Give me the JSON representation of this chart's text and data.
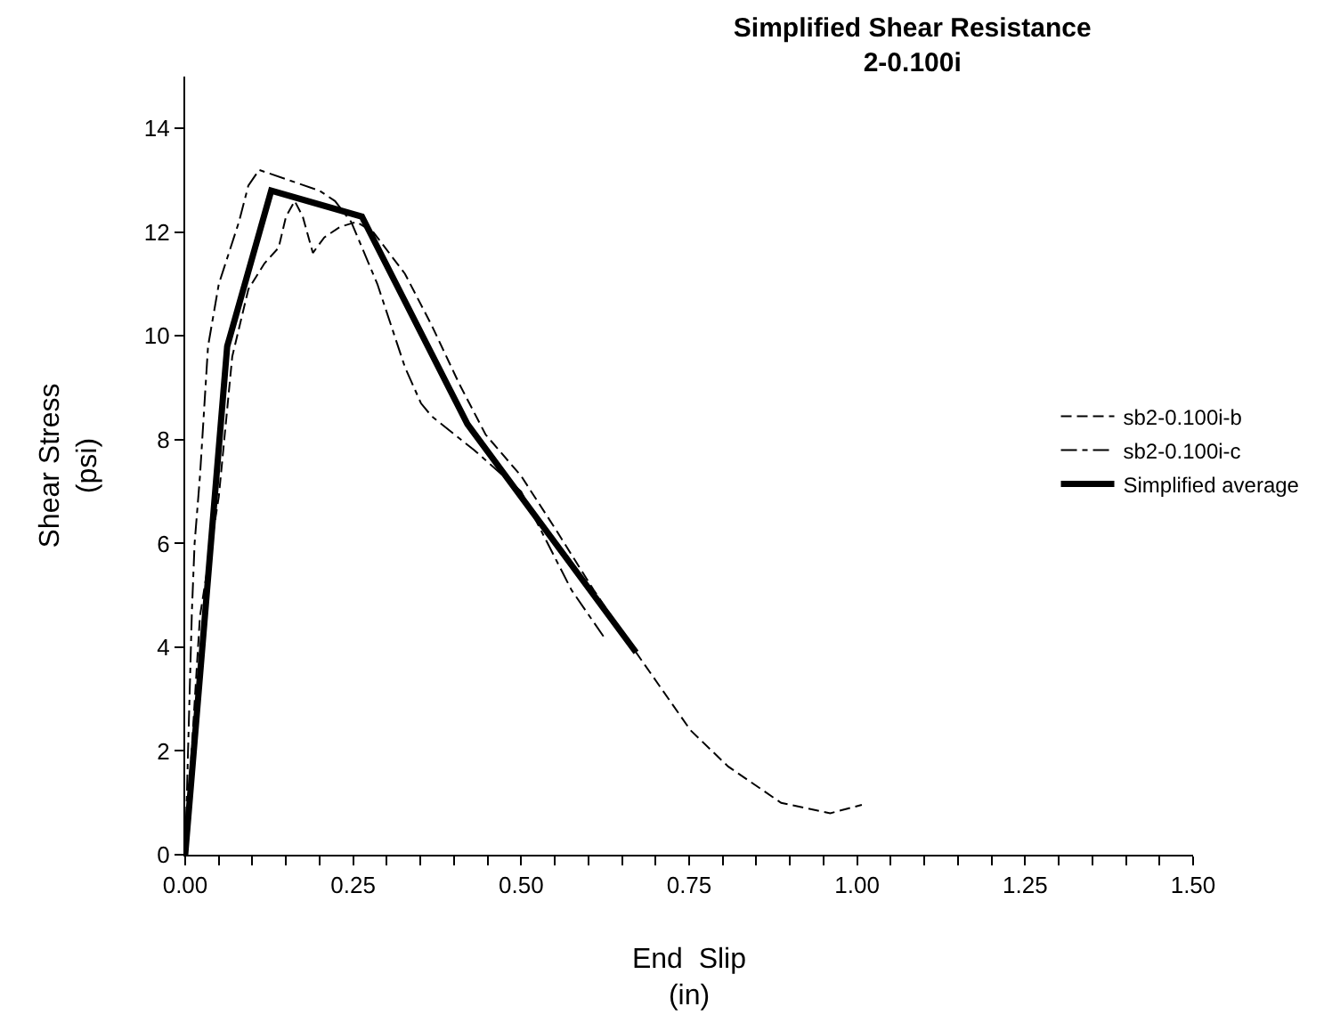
{
  "chart_data": {
    "type": "line",
    "title": "Simplified Shear Resistance\n2-0.100i",
    "xlabel": "End  Slip\n(in)",
    "ylabel": "Shear Stress\n(psi)",
    "xlim": [
      0,
      1.5
    ],
    "xticks": [
      {
        "value": 0,
        "label": "0.00"
      },
      {
        "value": 0.05,
        "label": null
      },
      {
        "value": 0.1,
        "label": null
      },
      {
        "value": 0.15,
        "label": null
      },
      {
        "value": 0.2,
        "label": null
      },
      {
        "value": 0.25,
        "label": "0.25"
      },
      {
        "value": 0.3,
        "label": null
      },
      {
        "value": 0.35,
        "label": null
      },
      {
        "value": 0.4,
        "label": null
      },
      {
        "value": 0.45,
        "label": null
      },
      {
        "value": 0.5,
        "label": "0.50"
      },
      {
        "value": 0.55,
        "label": null
      },
      {
        "value": 0.6,
        "label": null
      },
      {
        "value": 0.65,
        "label": null
      },
      {
        "value": 0.7,
        "label": null
      },
      {
        "value": 0.75,
        "label": "0.75"
      },
      {
        "value": 0.8,
        "label": null
      },
      {
        "value": 0.85,
        "label": null
      },
      {
        "value": 0.9,
        "label": null
      },
      {
        "value": 0.95,
        "label": null
      },
      {
        "value": 1,
        "label": "1.00"
      },
      {
        "value": 1.05,
        "label": null
      },
      {
        "value": 1.1,
        "label": null
      },
      {
        "value": 1.15,
        "label": null
      },
      {
        "value": 1.2,
        "label": null
      },
      {
        "value": 1.25,
        "label": "1.25"
      },
      {
        "value": 1.3,
        "label": null
      },
      {
        "value": 1.35,
        "label": null
      },
      {
        "value": 1.4,
        "label": null
      },
      {
        "value": 1.45,
        "label": null
      },
      {
        "value": 1.5,
        "label": "1.50"
      }
    ],
    "ylim": [
      0,
      15
    ],
    "yticks": [
      0,
      2,
      4,
      6,
      8,
      10,
      12,
      14
    ],
    "grid": false,
    "legend": "right",
    "marker": "none",
    "series": [
      {
        "name": "sb2-0.100i-b",
        "color": "#000000",
        "line_style": "dashed",
        "x": [
          0,
          0.022,
          0.05,
          0.07,
          0.094,
          0.118,
          0.139,
          0.15,
          0.163,
          0.175,
          0.19,
          0.207,
          0.23,
          0.255,
          0.28,
          0.327,
          0.367,
          0.407,
          0.447,
          0.5,
          0.55,
          0.608,
          0.671,
          0.752,
          0.808,
          0.887,
          0.96,
          1.007
        ],
        "values": [
          0,
          4.6,
          6.9,
          9.6,
          10.9,
          11.4,
          11.7,
          12.3,
          12.6,
          12.3,
          11.6,
          11.9,
          12.1,
          12.2,
          12,
          11.2,
          10.2,
          9.1,
          8.1,
          7.3,
          6.3,
          5.1,
          3.9,
          2.4,
          1.7,
          1.0,
          0.8,
          0.96
        ]
      },
      {
        "name": "sb2-0.100i-c",
        "color": "#000000",
        "line_style": "dashdot",
        "x": [
          0,
          0.01,
          0.014,
          0.022,
          0.034,
          0.05,
          0.08,
          0.094,
          0.11,
          0.2,
          0.223,
          0.247,
          0.286,
          0.327,
          0.351,
          0.367,
          0.43,
          0.5,
          0.575,
          0.623
        ],
        "values": [
          0,
          4.7,
          6,
          7.3,
          9.8,
          11,
          12.2,
          12.9,
          13.2,
          12.8,
          12.6,
          12.2,
          11,
          9.4,
          8.7,
          8.45,
          7.8,
          7,
          5.1,
          4.2
        ]
      },
      {
        "name": "Simplified average",
        "color": "#000000",
        "line_style": "solid",
        "x": [
          0,
          0.0625,
          0.128,
          0.263,
          0.42,
          0.671
        ],
        "values": [
          0,
          9.8,
          12.8,
          12.3,
          8.3,
          3.9
        ]
      }
    ]
  }
}
